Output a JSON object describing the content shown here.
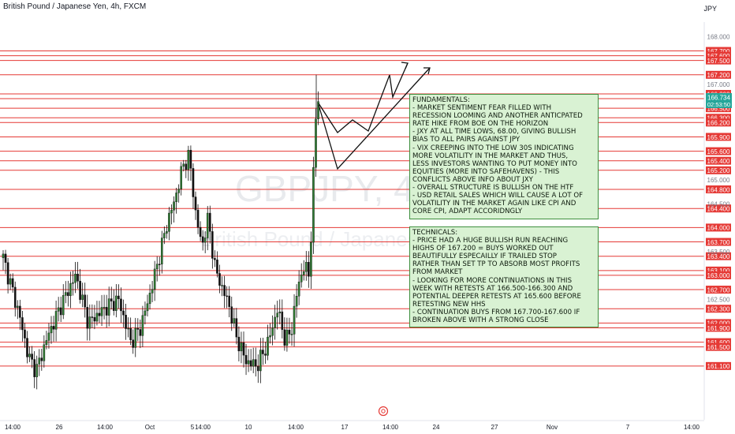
{
  "header": {
    "title": "British Pound / Japanese Yen, 4h, FXCM",
    "currency": "JPY"
  },
  "watermark": {
    "symbol": "GBPJPY, 4h",
    "description": "British Pound / Japanese Yen"
  },
  "chart_data": {
    "type": "candlestick",
    "symbol": "GBPJPY",
    "timeframe": "4h",
    "ylim": [
      161.0,
      168.2
    ],
    "price_ticks": [
      "168.000",
      "167.000",
      "165.000",
      "163.500",
      "162.500",
      "164.500"
    ],
    "time_ticks": [
      "14:00",
      "26",
      "14:00",
      "Oct",
      "5",
      "14:00",
      "10",
      "14:00",
      "17",
      "14:00",
      "24",
      "27",
      "Nov",
      "7",
      "14:00"
    ],
    "current_price": {
      "value": "166.734",
      "countdown": "02:53:50",
      "color": "#26a69a"
    },
    "levels": [
      {
        "label": "167.700",
        "value": 167.7
      },
      {
        "label": "167.600",
        "value": 167.6
      },
      {
        "label": "167.500",
        "value": 167.5
      },
      {
        "label": "167.200",
        "value": 167.2
      },
      {
        "label": "166.800",
        "value": 166.8
      },
      {
        "label": "166.700",
        "value": 166.7
      },
      {
        "label": "166.500",
        "value": 166.5
      },
      {
        "label": "166.300",
        "value": 166.3
      },
      {
        "label": "166.200",
        "value": 166.2
      },
      {
        "label": "165.900",
        "value": 165.9
      },
      {
        "label": "165.600",
        "value": 165.6
      },
      {
        "label": "165.400",
        "value": 165.4
      },
      {
        "label": "165.200",
        "value": 165.2
      },
      {
        "label": "164.800",
        "value": 164.8
      },
      {
        "label": "164.400",
        "value": 164.4
      },
      {
        "label": "164.000",
        "value": 164.0
      },
      {
        "label": "163.700",
        "value": 163.7
      },
      {
        "label": "163.400",
        "value": 163.4
      },
      {
        "label": "163.100",
        "value": 163.1
      },
      {
        "label": "163.000",
        "value": 163.0
      },
      {
        "label": "162.700",
        "value": 162.7
      },
      {
        "label": "162.300",
        "value": 162.3
      },
      {
        "label": "162.000",
        "value": 162.0
      },
      {
        "label": "161.900",
        "value": 161.9
      },
      {
        "label": "161.600",
        "value": 161.6
      },
      {
        "label": "161.500",
        "value": 161.5
      },
      {
        "label": "161.100",
        "value": 161.1
      }
    ],
    "colors": {
      "up": "#26a69a",
      "up_fill": "#2e7d32",
      "down": "#1a1a1a",
      "level": "#e53935",
      "axis_label_bg": "#e53935"
    }
  },
  "notes": {
    "fundamentals": [
      "FUNDAMENTALS:",
      "- MARKET SENTIMENT FEAR FILLED WITH",
      "RECESSION LOOMING AND ANOTHER ANTICPATED",
      "RATE HIKE FROM BOE ON THE HORIZON",
      "- JXY AT ALL TIME LOWS, 68.00, GIVING BULLISH",
      "BIAS TO ALL PAIRS AGAINST JPY",
      "- VIX CREEPING INTO THE LOW 30S INDICATING",
      "MORE VOLATILITY IN THE MARKET AND THUS,",
      "LESS INVESTORS WANTING TO PUT MONEY INTO",
      "EQUITIES (MORE INTO SAFEHAVENS) - THIS",
      "CONFLICTS ABOVE INFO ABOUT JXY",
      "- OVERALL STRUCTURE IS BULLISH ON THE HTF",
      "- USD RETAIL SALES WHICH WILL CAUSE A LOT OF",
      "VOLATILITY IN THE MARKET AGAIN LIKE CPI AND",
      "CORE CPI, ADAPT ACCORIDNGLY"
    ],
    "technicals": [
      "TECHNICALS:",
      "- PRICE HAD A HUGE BULLISH RUN REACHING",
      "HIGHS OF 167.200 = BUYS WORKED OUT",
      "BEAUTIFULLY ESPECAILLY IF TRAILED STOP",
      "RATHER THAN SET TP TO ABSORB MOST PROFITS",
      "FROM MARKET",
      "- LOOKING FOR MORE CONTINUATIONS IN THIS",
      "WEEK WITH RETESTS AT 166.500-166.300 AND",
      "POTENTIAL DEEPER RETESTS AT 165.600 BEFORE",
      "RETESTING NEW HHS",
      "- CONTINUATION BUYS FROM 167.700-167.600 IF",
      "BROKEN ABOVE WITH A STRONG CLOSE"
    ]
  }
}
